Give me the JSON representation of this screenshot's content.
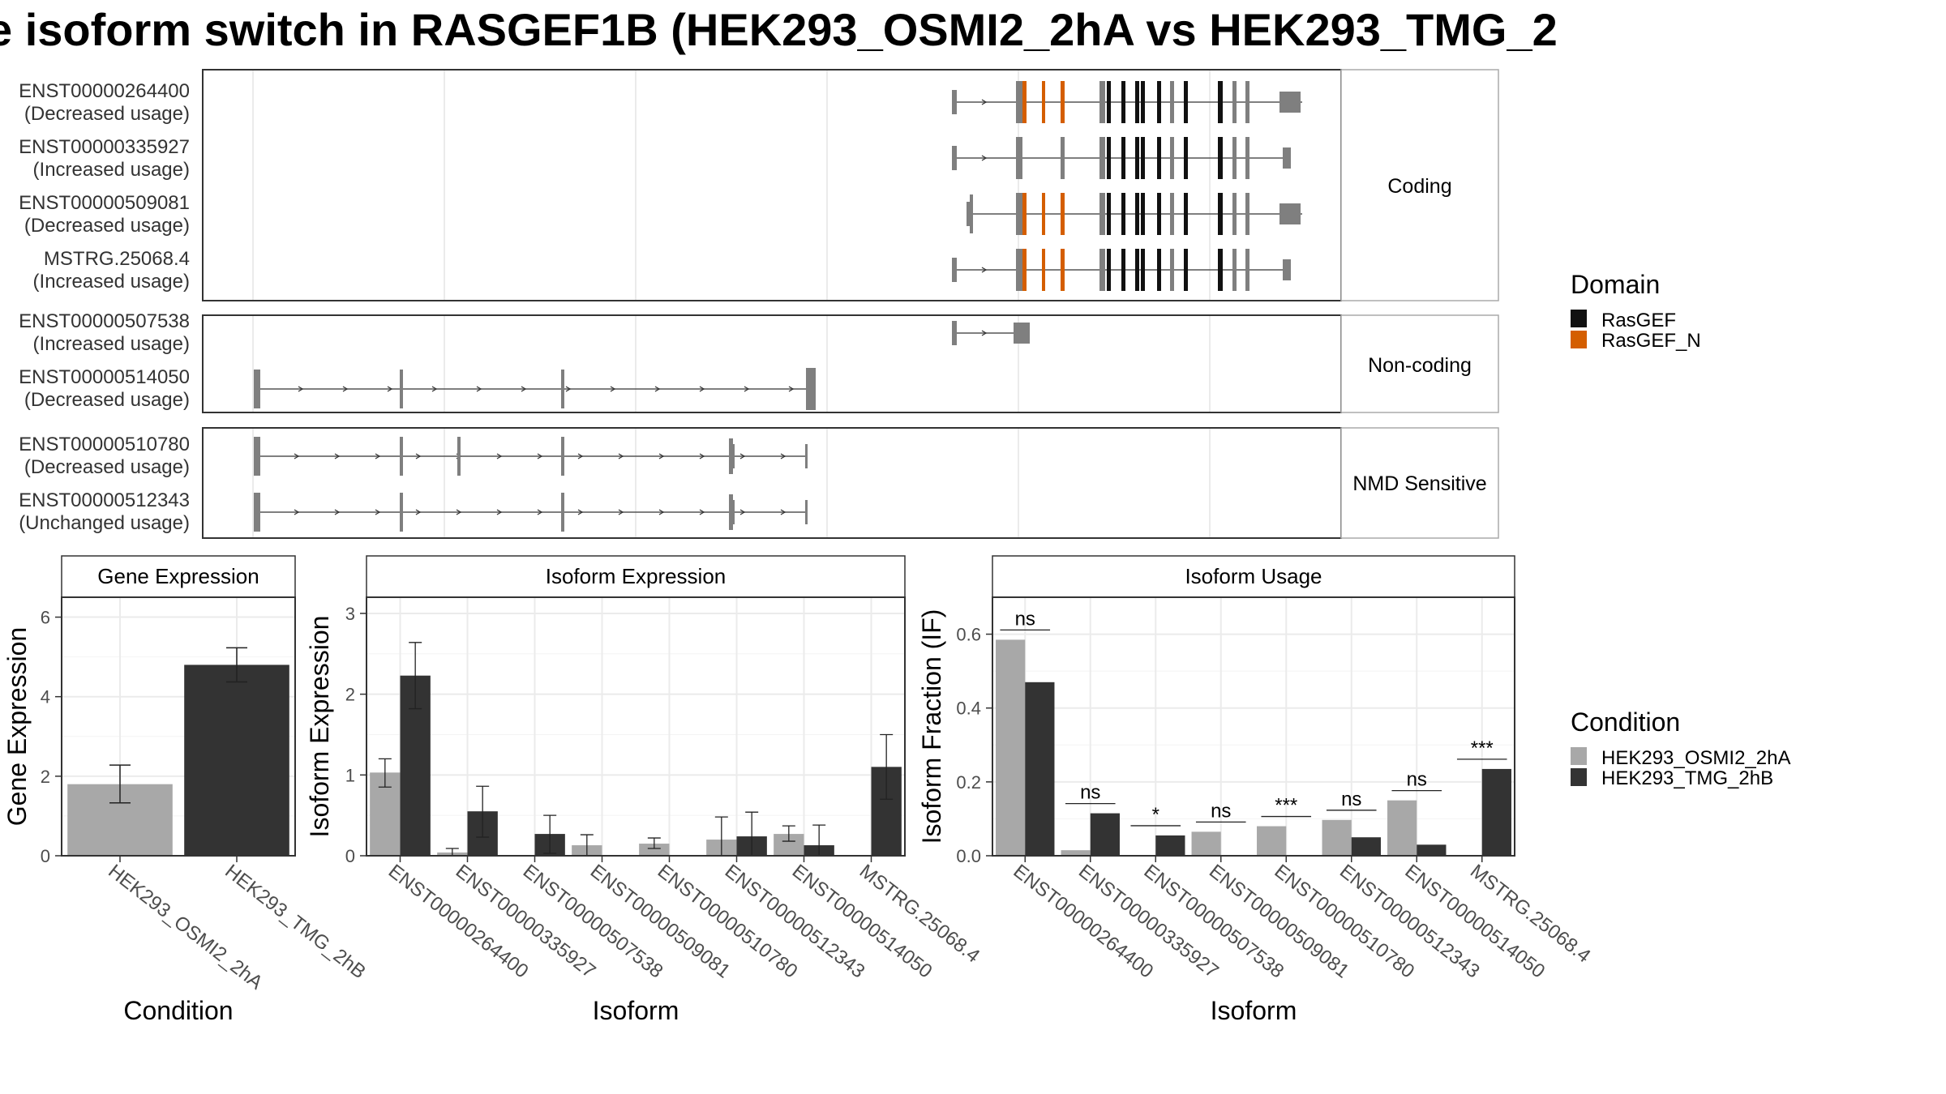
{
  "title": "e isoform switch in RASGEF1B (HEK293_OSMI2_2hA vs HEK293_TMG_2",
  "colors": {
    "rasgef": "#111111",
    "rasgef_n": "#d45e00",
    "exon": "#7f7f7f",
    "cond1": "#a8a8a8",
    "cond2": "#333333"
  },
  "structure": {
    "sections": [
      {
        "label": "Coding",
        "transcripts": [
          {
            "id": "ENST00000264400",
            "usage": "(Decreased usage)"
          },
          {
            "id": "ENST00000335927",
            "usage": "(Increased usage)"
          },
          {
            "id": "ENST00000509081",
            "usage": "(Decreased usage)"
          },
          {
            "id": "MSTRG.25068.4",
            "usage": "(Increased usage)"
          }
        ]
      },
      {
        "label": "Non-coding",
        "transcripts": [
          {
            "id": "ENST00000507538",
            "usage": "(Increased usage)"
          },
          {
            "id": "ENST00000514050",
            "usage": "(Decreased usage)"
          }
        ]
      },
      {
        "label": "NMD Sensitive",
        "transcripts": [
          {
            "id": "ENST00000510780",
            "usage": "(Decreased usage)"
          },
          {
            "id": "ENST00000512343",
            "usage": "(Unchanged usage)"
          }
        ]
      }
    ]
  },
  "legend_domain": {
    "title": "Domain",
    "items": [
      {
        "label": "RasGEF",
        "color": "#111111"
      },
      {
        "label": "RasGEF_N",
        "color": "#d45e00"
      }
    ]
  },
  "legend_condition": {
    "title": "Condition",
    "items": [
      {
        "label": "HEK293_OSMI2_2hA",
        "color": "#a8a8a8"
      },
      {
        "label": "HEK293_TMG_2hB",
        "color": "#333333"
      }
    ]
  },
  "chart_data": [
    {
      "type": "bar",
      "title": "Gene Expression",
      "xlabel": "Condition",
      "ylabel": "Gene Expression",
      "categories": [
        "HEK293_OSMI2_2hA",
        "HEK293_TMG_2hB"
      ],
      "values": [
        1.8,
        4.8
      ],
      "errors": [
        [
          1.33,
          2.28
        ],
        [
          4.37,
          5.23
        ]
      ],
      "ylim": [
        0,
        6.5
      ],
      "yticks": [
        "0",
        "2",
        "4",
        "6"
      ],
      "grid": true
    },
    {
      "type": "bar",
      "title": "Isoform Expression",
      "xlabel": "Isoform",
      "ylabel": "Isoform Expression",
      "categories": [
        "ENST00000264400",
        "ENST00000335927",
        "ENST00000507538",
        "ENST00000509081",
        "ENST00000510780",
        "ENST00000512343",
        "ENST00000514050",
        "MSTRG.25068.4"
      ],
      "series": [
        {
          "name": "HEK293_OSMI2_2hA",
          "values": [
            1.03,
            0.04,
            0.0,
            0.13,
            0.15,
            0.2,
            0.27,
            0.0
          ],
          "errors": [
            [
              0.85,
              1.2
            ],
            [
              0.0,
              0.09
            ],
            [
              0.0,
              0.0
            ],
            [
              0.0,
              0.26
            ],
            [
              0.09,
              0.22
            ],
            [
              0.0,
              0.48
            ],
            [
              0.18,
              0.37
            ],
            [
              0.0,
              0.0
            ]
          ]
        },
        {
          "name": "HEK293_TMG_2hB",
          "values": [
            2.23,
            0.55,
            0.27,
            0.0,
            0.0,
            0.24,
            0.13,
            1.1
          ],
          "errors": [
            [
              1.82,
              2.64
            ],
            [
              0.23,
              0.86
            ],
            [
              0.03,
              0.5
            ],
            [
              0.0,
              0.0
            ],
            [
              0.0,
              0.0
            ],
            [
              0.0,
              0.54
            ],
            [
              0.0,
              0.38
            ],
            [
              0.7,
              1.5
            ]
          ]
        }
      ],
      "ylim": [
        0,
        3.2
      ],
      "yticks": [
        "0",
        "1",
        "2",
        "3"
      ],
      "grid": true
    },
    {
      "type": "bar",
      "title": "Isoform Usage",
      "xlabel": "Isoform",
      "ylabel": "Isoform Fraction (IF)",
      "categories": [
        "ENST00000264400",
        "ENST00000335927",
        "ENST00000507538",
        "ENST00000509081",
        "ENST00000510780",
        "ENST00000512343",
        "ENST00000514050",
        "MSTRG.25068.4"
      ],
      "series": [
        {
          "name": "HEK293_OSMI2_2hA",
          "values": [
            0.585,
            0.015,
            0.0,
            0.065,
            0.08,
            0.097,
            0.15,
            0.0
          ]
        },
        {
          "name": "HEK293_TMG_2hB",
          "values": [
            0.47,
            0.115,
            0.055,
            0.0,
            0.0,
            0.05,
            0.03,
            0.235
          ]
        }
      ],
      "significance": [
        "ns",
        "ns",
        "*",
        "ns",
        "***",
        "ns",
        "ns",
        "***"
      ],
      "ylim": [
        0,
        0.7
      ],
      "yticks": [
        "0.0",
        "0.2",
        "0.4",
        "0.6"
      ],
      "grid": true
    }
  ]
}
